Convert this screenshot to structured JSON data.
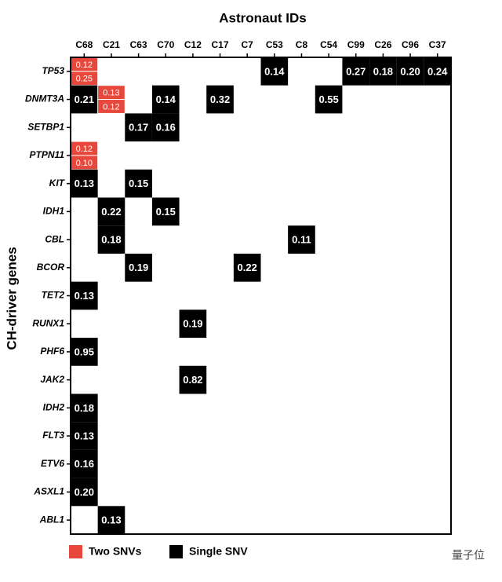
{
  "chart_data": {
    "type": "grid",
    "title": "Astronaut IDs",
    "y_label": "CH-driver genes",
    "columns": [
      "C68",
      "C21",
      "C63",
      "C70",
      "C12",
      "C17",
      "C7",
      "C53",
      "C8",
      "C54",
      "C99",
      "C26",
      "C96",
      "C37"
    ],
    "rows": [
      "TP53",
      "DNMT3A",
      "SETBP1",
      "PTPN11",
      "KIT",
      "IDH1",
      "CBL",
      "BCOR",
      "TET2",
      "RUNX1",
      "PHF6",
      "JAK2",
      "IDH2",
      "FLT3",
      "ETV6",
      "ASXL1",
      "ABL1"
    ],
    "values": [
      [
        [
          0.12,
          0.25
        ],
        null,
        null,
        null,
        null,
        null,
        null,
        0.14,
        null,
        null,
        0.27,
        0.18,
        0.2,
        0.24
      ],
      [
        0.21,
        [
          0.13,
          0.12
        ],
        null,
        0.14,
        null,
        0.32,
        null,
        null,
        null,
        0.55,
        null,
        null,
        null,
        null
      ],
      [
        null,
        null,
        0.17,
        0.16,
        null,
        null,
        null,
        null,
        null,
        null,
        null,
        null,
        null,
        null
      ],
      [
        [
          0.12,
          0.1
        ],
        null,
        null,
        null,
        null,
        null,
        null,
        null,
        null,
        null,
        null,
        null,
        null,
        null
      ],
      [
        0.13,
        null,
        0.15,
        null,
        null,
        null,
        null,
        null,
        null,
        null,
        null,
        null,
        null,
        null
      ],
      [
        null,
        0.22,
        null,
        0.15,
        null,
        null,
        null,
        null,
        null,
        null,
        null,
        null,
        null,
        null
      ],
      [
        null,
        0.18,
        null,
        null,
        null,
        null,
        null,
        null,
        0.11,
        null,
        null,
        null,
        null,
        null
      ],
      [
        null,
        null,
        0.19,
        null,
        null,
        null,
        0.22,
        null,
        null,
        null,
        null,
        null,
        null,
        null
      ],
      [
        0.13,
        null,
        null,
        null,
        null,
        null,
        null,
        null,
        null,
        null,
        null,
        null,
        null,
        null
      ],
      [
        null,
        null,
        null,
        null,
        0.19,
        null,
        null,
        null,
        null,
        null,
        null,
        null,
        null,
        null
      ],
      [
        0.95,
        null,
        null,
        null,
        null,
        null,
        null,
        null,
        null,
        null,
        null,
        null,
        null,
        null
      ],
      [
        null,
        null,
        null,
        null,
        0.82,
        null,
        null,
        null,
        null,
        null,
        null,
        null,
        null,
        null
      ],
      [
        0.18,
        null,
        null,
        null,
        null,
        null,
        null,
        null,
        null,
        null,
        null,
        null,
        null,
        null
      ],
      [
        0.13,
        null,
        null,
        null,
        null,
        null,
        null,
        null,
        null,
        null,
        null,
        null,
        null,
        null
      ],
      [
        0.16,
        null,
        null,
        null,
        null,
        null,
        null,
        null,
        null,
        null,
        null,
        null,
        null,
        null
      ],
      [
        0.2,
        null,
        null,
        null,
        null,
        null,
        null,
        null,
        null,
        null,
        null,
        null,
        null,
        null
      ],
      [
        null,
        0.13,
        null,
        null,
        null,
        null,
        null,
        null,
        null,
        null,
        null,
        null,
        null,
        null
      ]
    ],
    "value_labels": [
      [
        [
          "0.12",
          "0.25"
        ],
        null,
        null,
        null,
        null,
        null,
        null,
        "0.14",
        null,
        null,
        "0.27",
        "0.18",
        "0.20",
        "0.24"
      ],
      [
        "0.21",
        [
          "0.13",
          "0.12"
        ],
        null,
        "0.14",
        null,
        "0.32",
        null,
        null,
        null,
        "0.55",
        null,
        null,
        null,
        null
      ],
      [
        null,
        null,
        "0.17",
        "0.16",
        null,
        null,
        null,
        null,
        null,
        null,
        null,
        null,
        null,
        null
      ],
      [
        [
          "0.12",
          "0.10"
        ],
        null,
        null,
        null,
        null,
        null,
        null,
        null,
        null,
        null,
        null,
        null,
        null,
        null
      ],
      [
        "0.13",
        null,
        "0.15",
        null,
        null,
        null,
        null,
        null,
        null,
        null,
        null,
        null,
        null,
        null
      ],
      [
        null,
        "0.22",
        null,
        "0.15",
        null,
        null,
        null,
        null,
        null,
        null,
        null,
        null,
        null,
        null
      ],
      [
        null,
        "0.18",
        null,
        null,
        null,
        null,
        null,
        null,
        "0.11",
        null,
        null,
        null,
        null,
        null
      ],
      [
        null,
        null,
        "0.19",
        null,
        null,
        null,
        "0.22",
        null,
        null,
        null,
        null,
        null,
        null,
        null
      ],
      [
        "0.13",
        null,
        null,
        null,
        null,
        null,
        null,
        null,
        null,
        null,
        null,
        null,
        null,
        null
      ],
      [
        null,
        null,
        null,
        null,
        "0.19",
        null,
        null,
        null,
        null,
        null,
        null,
        null,
        null,
        null
      ],
      [
        "0.95",
        null,
        null,
        null,
        null,
        null,
        null,
        null,
        null,
        null,
        null,
        null,
        null,
        null
      ],
      [
        null,
        null,
        null,
        null,
        "0.82",
        null,
        null,
        null,
        null,
        null,
        null,
        null,
        null,
        null
      ],
      [
        "0.18",
        null,
        null,
        null,
        null,
        null,
        null,
        null,
        null,
        null,
        null,
        null,
        null,
        null
      ],
      [
        "0.13",
        null,
        null,
        null,
        null,
        null,
        null,
        null,
        null,
        null,
        null,
        null,
        null,
        null
      ],
      [
        "0.16",
        null,
        null,
        null,
        null,
        null,
        null,
        null,
        null,
        null,
        null,
        null,
        null,
        null
      ],
      [
        "0.20",
        null,
        null,
        null,
        null,
        null,
        null,
        null,
        null,
        null,
        null,
        null,
        null,
        null
      ],
      [
        null,
        "0.13",
        null,
        null,
        null,
        null,
        null,
        null,
        null,
        null,
        null,
        null,
        null,
        null
      ]
    ],
    "series": [
      {
        "name": "Two SNVs",
        "color": "#e8473b"
      },
      {
        "name": "Single SNV",
        "color": "#000000"
      }
    ],
    "watermark": "量子位"
  }
}
